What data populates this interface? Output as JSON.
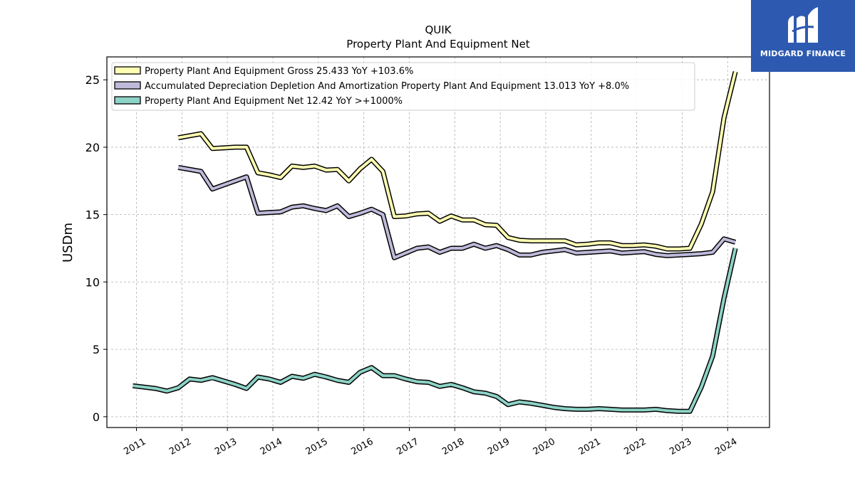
{
  "chart_data": {
    "type": "line",
    "title": "QUIK",
    "subtitle": "Property Plant And Equipment Net",
    "xlabel": "",
    "ylabel": "USDm",
    "xlim": [
      2010.35,
      2024.92
    ],
    "ylim": [
      -0.8,
      26.7
    ],
    "yticks": [
      0,
      5,
      10,
      15,
      20,
      25
    ],
    "xticks": [
      2011,
      2012,
      2013,
      2014,
      2015,
      2016,
      2017,
      2018,
      2019,
      2020,
      2021,
      2022,
      2023,
      2024
    ],
    "grid": true,
    "legend_position": "top-left",
    "series": [
      {
        "name": "Property Plant And Equipment Gross  25.433 YoY +103.6%",
        "color": "#ffffb3",
        "x": [
          2011.92,
          2012.17,
          2012.42,
          2012.67,
          2012.92,
          2013.17,
          2013.42,
          2013.67,
          2013.92,
          2014.17,
          2014.42,
          2014.67,
          2014.92,
          2015.17,
          2015.42,
          2015.67,
          2015.92,
          2016.17,
          2016.42,
          2016.67,
          2016.92,
          2017.17,
          2017.42,
          2017.67,
          2017.92,
          2018.17,
          2018.42,
          2018.67,
          2018.92,
          2019.17,
          2019.42,
          2019.67,
          2019.92,
          2020.17,
          2020.42,
          2020.67,
          2020.92,
          2021.17,
          2021.42,
          2021.67,
          2021.92,
          2022.17,
          2022.42,
          2022.67,
          2022.92,
          2023.17,
          2023.42,
          2023.67,
          2023.92,
          2024.17
        ],
        "values": [
          20.7,
          20.85,
          21.0,
          19.9,
          19.95,
          20.0,
          20.0,
          18.1,
          17.95,
          17.75,
          18.6,
          18.5,
          18.6,
          18.3,
          18.35,
          17.5,
          18.4,
          19.1,
          18.2,
          14.85,
          14.9,
          15.05,
          15.1,
          14.5,
          14.9,
          14.6,
          14.6,
          14.25,
          14.2,
          13.3,
          13.1,
          13.05,
          13.05,
          13.05,
          13.05,
          12.75,
          12.8,
          12.9,
          12.9,
          12.7,
          12.7,
          12.75,
          12.65,
          12.45,
          12.45,
          12.5,
          14.3,
          16.7,
          22.2,
          25.6
        ]
      },
      {
        "name": "Accumulated Depreciation Depletion And Amortization Property Plant And Equipment  13.013 YoY +8.0%",
        "color": "#bebada",
        "x": [
          2011.92,
          2012.17,
          2012.42,
          2012.67,
          2012.92,
          2013.17,
          2013.42,
          2013.67,
          2013.92,
          2014.17,
          2014.42,
          2014.67,
          2014.92,
          2015.17,
          2015.42,
          2015.67,
          2015.92,
          2016.17,
          2016.42,
          2016.67,
          2016.92,
          2017.17,
          2017.42,
          2017.67,
          2017.92,
          2018.17,
          2018.42,
          2018.67,
          2018.92,
          2019.17,
          2019.42,
          2019.67,
          2019.92,
          2020.17,
          2020.42,
          2020.67,
          2020.92,
          2021.17,
          2021.42,
          2021.67,
          2021.92,
          2022.17,
          2022.42,
          2022.67,
          2022.92,
          2023.17,
          2023.42,
          2023.67,
          2023.92,
          2024.17
        ],
        "values": [
          18.5,
          18.35,
          18.2,
          16.9,
          17.2,
          17.5,
          17.8,
          15.1,
          15.15,
          15.2,
          15.55,
          15.65,
          15.45,
          15.3,
          15.65,
          14.85,
          15.1,
          15.4,
          15.0,
          11.8,
          12.15,
          12.5,
          12.6,
          12.2,
          12.5,
          12.5,
          12.8,
          12.5,
          12.7,
          12.4,
          12.0,
          12.0,
          12.2,
          12.3,
          12.4,
          12.15,
          12.2,
          12.25,
          12.3,
          12.15,
          12.2,
          12.25,
          12.05,
          11.95,
          12.0,
          12.05,
          12.1,
          12.2,
          13.2,
          12.95
        ]
      },
      {
        "name": "Property Plant And Equipment Net  12.42 YoY >+1000%",
        "color": "#8dd3c7",
        "x": [
          2010.92,
          2011.17,
          2011.42,
          2011.67,
          2011.92,
          2012.17,
          2012.42,
          2012.67,
          2012.92,
          2013.17,
          2013.42,
          2013.67,
          2013.92,
          2014.17,
          2014.42,
          2014.67,
          2014.92,
          2015.17,
          2015.42,
          2015.67,
          2015.92,
          2016.17,
          2016.42,
          2016.67,
          2016.92,
          2017.17,
          2017.42,
          2017.67,
          2017.92,
          2018.17,
          2018.42,
          2018.67,
          2018.92,
          2019.17,
          2019.42,
          2019.67,
          2019.92,
          2020.17,
          2020.42,
          2020.67,
          2020.92,
          2021.17,
          2021.42,
          2021.67,
          2021.92,
          2022.17,
          2022.42,
          2022.67,
          2022.92,
          2023.17,
          2023.42,
          2023.67,
          2023.92,
          2024.17
        ],
        "values": [
          2.3,
          2.2,
          2.1,
          1.9,
          2.15,
          2.8,
          2.7,
          2.9,
          2.65,
          2.4,
          2.1,
          2.95,
          2.8,
          2.55,
          3.0,
          2.85,
          3.15,
          2.95,
          2.7,
          2.55,
          3.3,
          3.65,
          3.05,
          3.05,
          2.8,
          2.6,
          2.55,
          2.25,
          2.4,
          2.15,
          1.85,
          1.75,
          1.5,
          0.9,
          1.1,
          1.0,
          0.85,
          0.7,
          0.6,
          0.55,
          0.55,
          0.6,
          0.55,
          0.5,
          0.5,
          0.5,
          0.55,
          0.45,
          0.4,
          0.4,
          2.2,
          4.5,
          8.8,
          12.5
        ]
      }
    ]
  },
  "logo": {
    "text": "MIDGARD FINANCE",
    "background": "#2d5ab0"
  }
}
